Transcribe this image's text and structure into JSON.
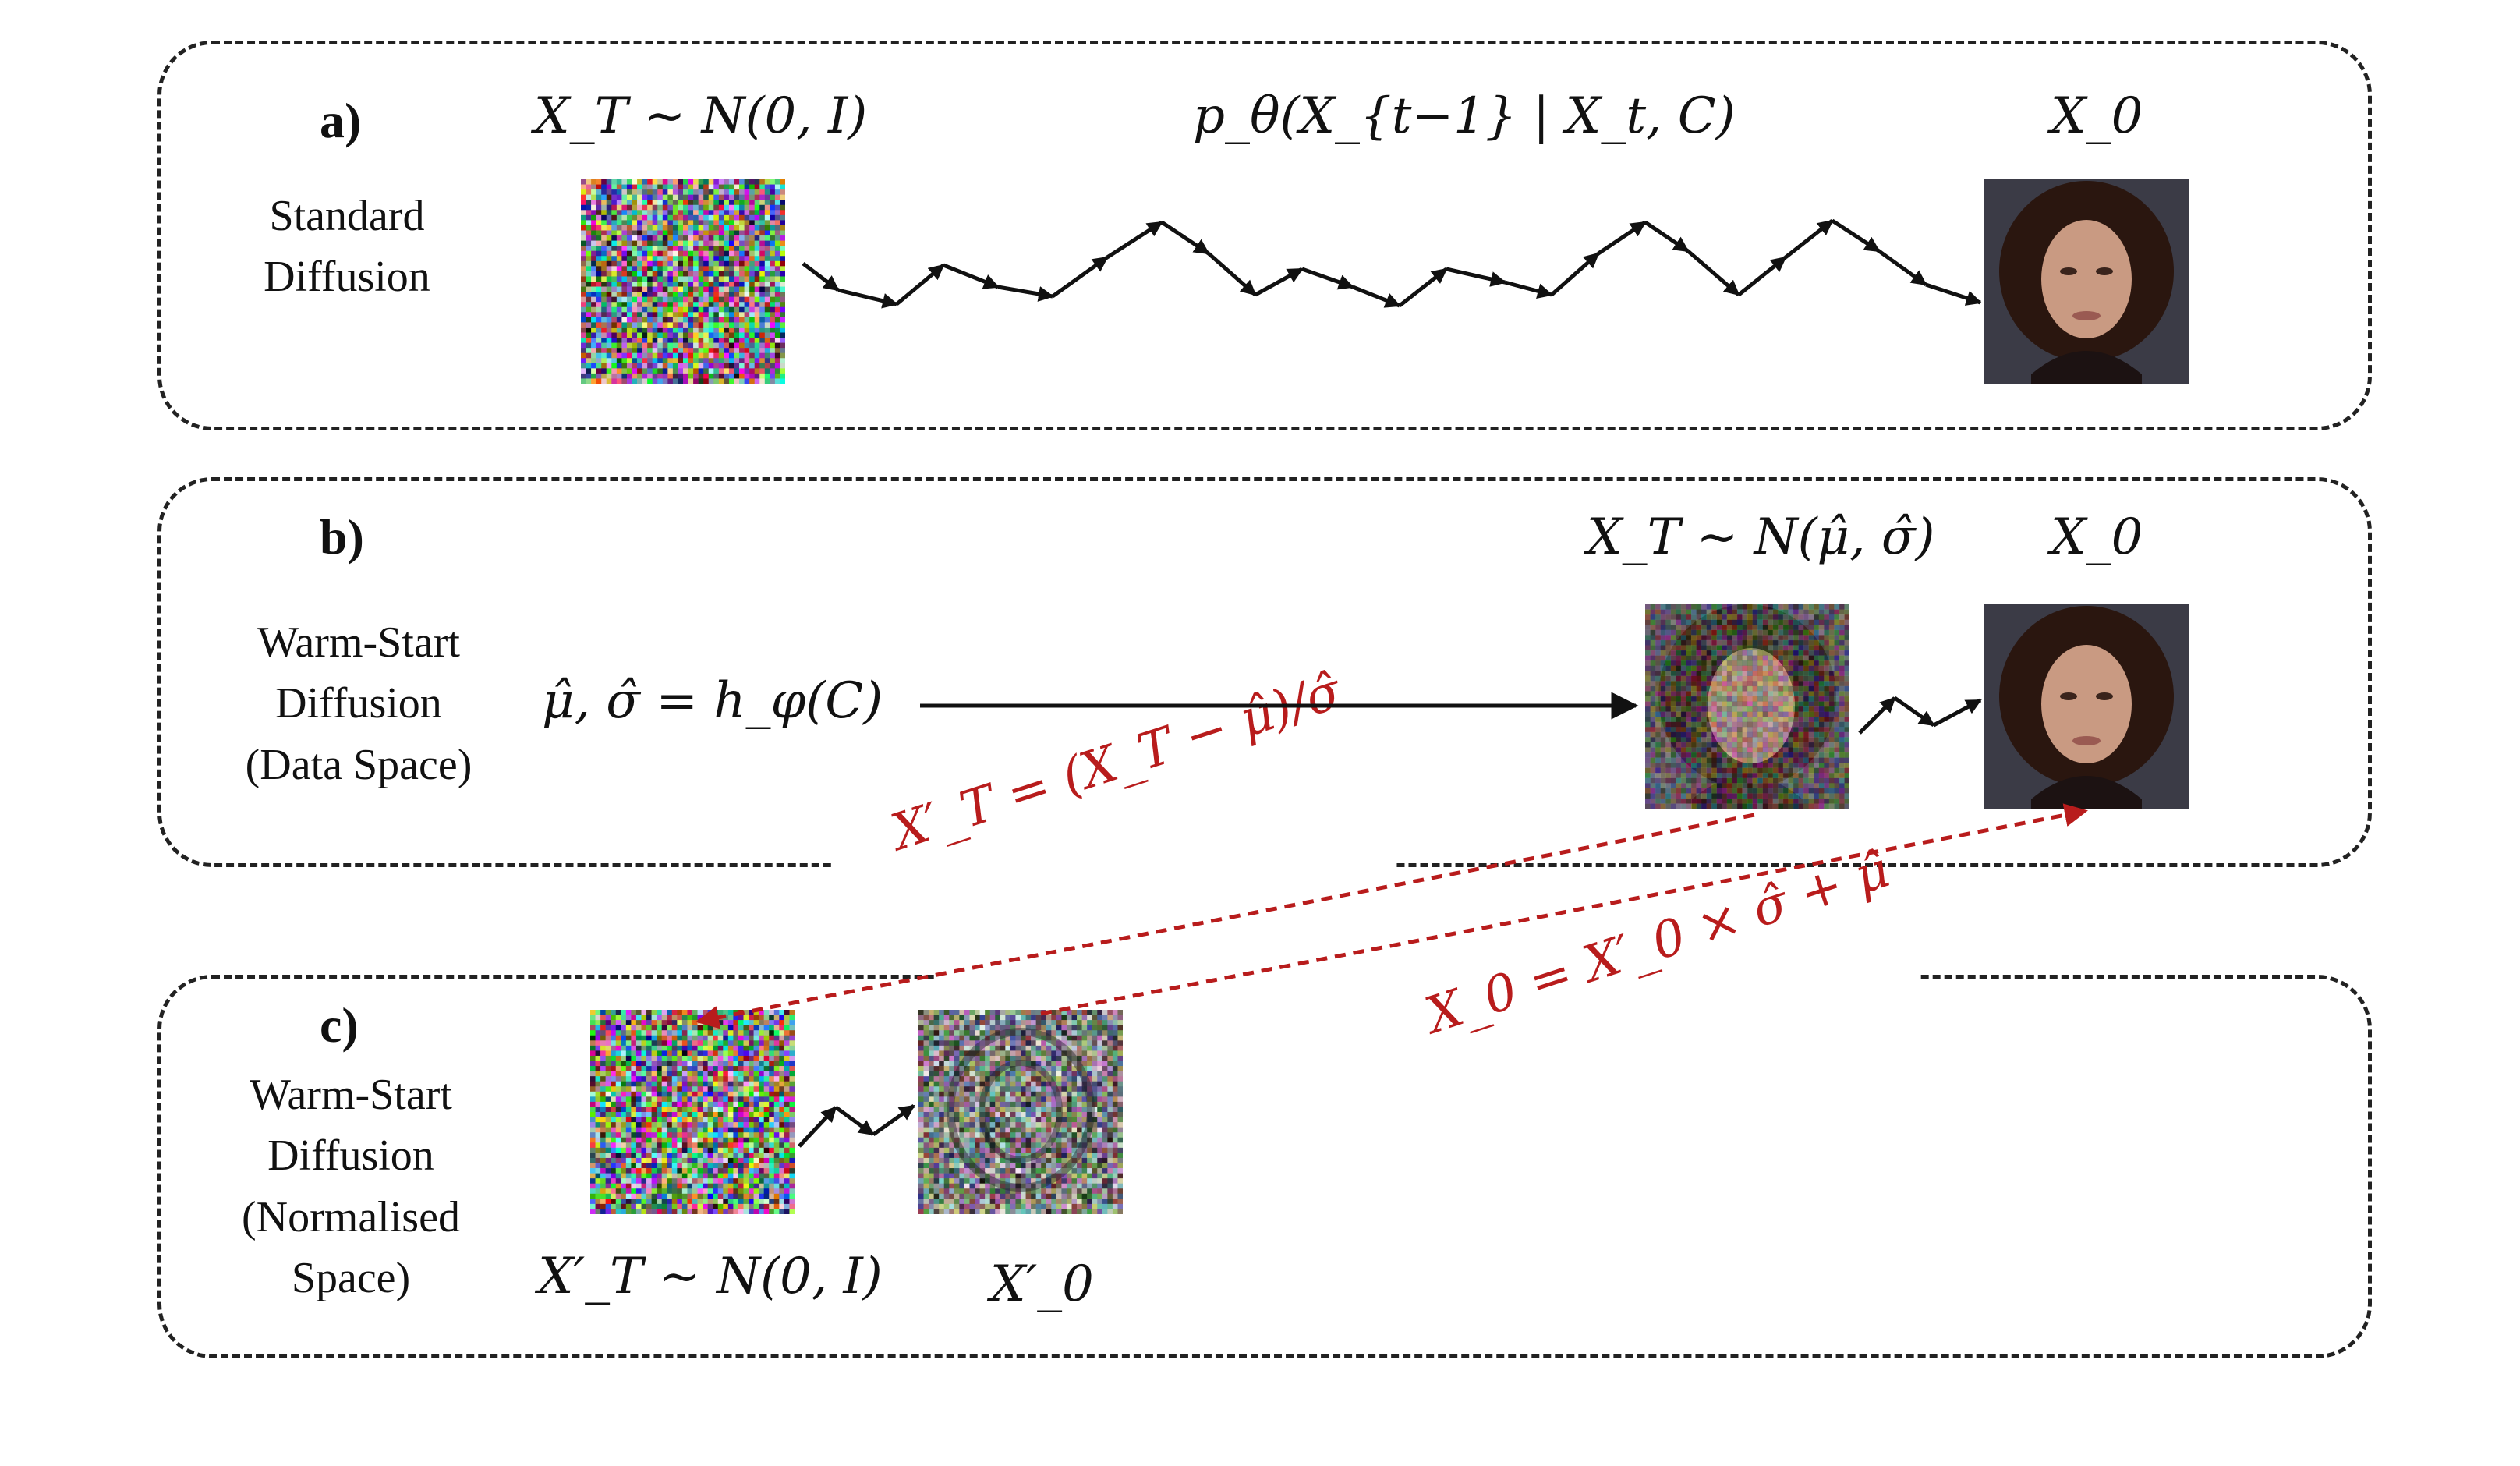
{
  "panels": {
    "a": {
      "letter": "a)",
      "name_line1": "Standard",
      "name_line2": "Diffusion",
      "start_label": "X_T ~ N(0, I)",
      "process_label": "p_θ(X_{t−1} | X_t, C)",
      "end_label": "X_0"
    },
    "b": {
      "letter": "b)",
      "name_line1": "Warm-Start",
      "name_line2": "Diffusion",
      "name_line3": "(Data Space)",
      "predictor_label": "μ̂, σ̂ = h_φ(C)",
      "start_label": "X_T ~ N(μ̂, σ̂)",
      "end_label": "X_0"
    },
    "c": {
      "letter": "c)",
      "name_line1": "Warm-Start",
      "name_line2": "Diffusion",
      "name_line3": "(Normalised",
      "name_line4": "Space)",
      "start_label": "X′_T ~ N(0, I)",
      "end_label": "X′_0"
    }
  },
  "transforms": {
    "normalise": "X′_T = (X_T − μ̂)/σ̂",
    "denormalise": "X_0 = X′_0 × σ̂ + μ̂"
  },
  "images": {
    "noise_a": "gaussian-noise",
    "face_a": "generated-face",
    "noisy_face_b": "noisy-face",
    "face_b": "generated-face",
    "noise_c": "gaussian-noise",
    "pattern_c": "normalised-sample"
  },
  "colors": {
    "transform_red": "#b81c1c",
    "border": "#222222"
  }
}
